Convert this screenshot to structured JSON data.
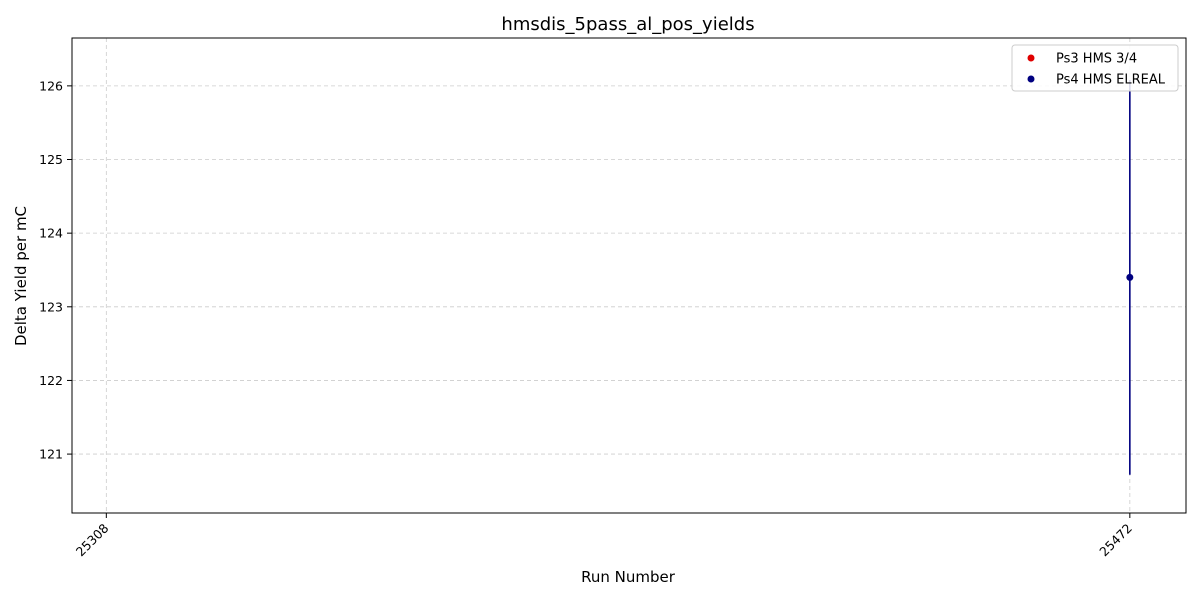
{
  "chart_data": {
    "type": "scatter",
    "title": "hmsdis_5pass_al_pos_yields",
    "xlabel": "Run Number",
    "ylabel": "Delta Yield per mC",
    "x_ticks": [
      25308,
      25472
    ],
    "xlim": [
      25302.5,
      25481
    ],
    "y_ticks": [
      121,
      122,
      123,
      124,
      125,
      126
    ],
    "ylim": [
      120.2,
      126.65
    ],
    "grid": true,
    "legend_position": "top-right",
    "series": [
      {
        "name": "Ps3 HMS 3/4",
        "color": "#e00000",
        "points": []
      },
      {
        "name": "Ps4 HMS ELREAL",
        "color": "#000080",
        "points": [
          {
            "x": 25472,
            "y": 123.4,
            "err": 2.68
          }
        ]
      }
    ]
  }
}
